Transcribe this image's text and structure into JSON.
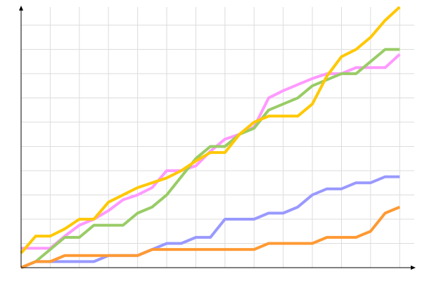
{
  "chart_data": {
    "type": "line",
    "grid": true,
    "x": [
      0,
      0.5,
      1,
      1.5,
      2,
      2.5,
      3,
      3.5,
      4,
      4.5,
      5,
      5.5,
      6,
      6.5,
      7,
      7.5,
      8,
      8.5,
      9,
      9.5,
      10,
      10.5,
      11,
      11.5,
      12,
      12.5,
      13
    ],
    "xlim": [
      0,
      13.5
    ],
    "xticks": [
      1,
      2,
      3,
      4,
      5,
      6,
      7,
      8,
      9,
      10,
      11,
      12,
      13
    ],
    "ylim": [
      0,
      10.75
    ],
    "yticks": [
      1,
      2,
      3,
      4,
      5,
      6,
      7,
      8,
      9,
      10
    ],
    "series": [
      {
        "color": "#ff99ff",
        "values": [
          0.8,
          0.8,
          0.8,
          1.3,
          1.75,
          2,
          2.35,
          2.8,
          3,
          3.3,
          4,
          4,
          4.2,
          4.8,
          5.3,
          5.5,
          5.8,
          7,
          7.3,
          7.55,
          7.8,
          8,
          8,
          8.25,
          8.25,
          8.25,
          8.8
        ]
      },
      {
        "color": "#9999ff",
        "values": [
          0,
          0.25,
          0.25,
          0.25,
          0.25,
          0.25,
          0.5,
          0.5,
          0.5,
          0.75,
          1,
          1,
          1.25,
          1.25,
          2,
          2,
          2,
          2.25,
          2.25,
          2.5,
          3,
          3.25,
          3.25,
          3.5,
          3.5,
          3.75,
          3.75
        ]
      },
      {
        "color": "#99cc66",
        "values": [
          0,
          0.25,
          0.75,
          1.25,
          1.25,
          1.75,
          1.75,
          1.75,
          2.25,
          2.5,
          3,
          3.75,
          4.5,
          5,
          5,
          5.5,
          5.75,
          6.5,
          6.75,
          7,
          7.5,
          7.75,
          8,
          8,
          8.5,
          9,
          9
        ]
      },
      {
        "color": "#ff9933",
        "values": [
          0,
          0.25,
          0.25,
          0.5,
          0.5,
          0.5,
          0.5,
          0.5,
          0.5,
          0.75,
          0.75,
          0.75,
          0.75,
          0.75,
          0.75,
          0.75,
          0.75,
          1,
          1,
          1,
          1,
          1.25,
          1.25,
          1.25,
          1.5,
          2.25,
          2.5
        ]
      },
      {
        "color": "#ffc800",
        "values": [
          0.6,
          1.3,
          1.3,
          1.6,
          2,
          2,
          2.7,
          3,
          3.3,
          3.5,
          3.7,
          4,
          4.4,
          4.75,
          4.75,
          5.5,
          6,
          6.25,
          6.25,
          6.25,
          6.75,
          7.9,
          8.7,
          9,
          9.5,
          10.2,
          10.75
        ]
      }
    ]
  }
}
